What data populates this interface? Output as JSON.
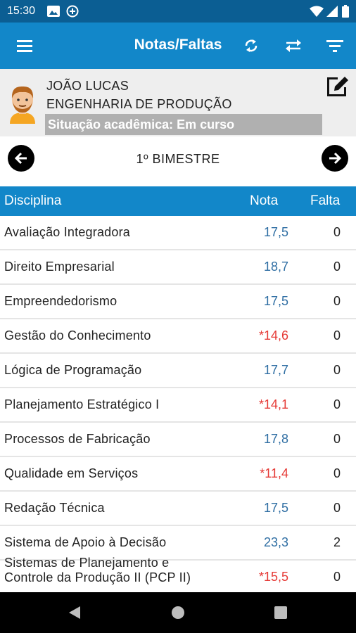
{
  "status_bar": {
    "time": "15:30"
  },
  "app_bar": {
    "title": "Notas/Faltas"
  },
  "profile": {
    "name": "JOÃO LUCAS",
    "course": "ENGENHARIA DE PRODUÇÃO",
    "status": "Situação acadêmica: Em curso"
  },
  "period": {
    "title": "1º BIMESTRE"
  },
  "table": {
    "headers": {
      "discipline": "Disciplina",
      "grade": "Nota",
      "absence": "Falta"
    },
    "rows": [
      {
        "discipline": "Avaliação Integradora",
        "grade": "17,5",
        "absence": "0",
        "low": false
      },
      {
        "discipline": "Direito Empresarial",
        "grade": "18,7",
        "absence": "0",
        "low": false
      },
      {
        "discipline": "Empreendedorismo",
        "grade": "17,5",
        "absence": "0",
        "low": false
      },
      {
        "discipline": "Gestão do Conhecimento",
        "grade": "*14,6",
        "absence": "0",
        "low": true
      },
      {
        "discipline": "Lógica de Programação",
        "grade": "17,7",
        "absence": "0",
        "low": false
      },
      {
        "discipline": "Planejamento Estratégico I",
        "grade": "*14,1",
        "absence": "0",
        "low": true
      },
      {
        "discipline": "Processos de Fabricação",
        "grade": "17,8",
        "absence": "0",
        "low": false
      },
      {
        "discipline": "Qualidade em Serviços",
        "grade": "*11,4",
        "absence": "0",
        "low": true
      },
      {
        "discipline": "Redação Técnica",
        "grade": "17,5",
        "absence": "0",
        "low": false
      },
      {
        "discipline": "Sistema de Apoio à Decisão",
        "grade": "23,3",
        "absence": "2",
        "low": false
      },
      {
        "discipline": "Sistemas de Planejamento e Controle da Produção II (PCP II)",
        "grade": "*15,5",
        "absence": "0",
        "low": true
      }
    ]
  },
  "colors": {
    "primary": "#1287c9",
    "status_bar": "#0b5e93",
    "grade_ok": "#2f6ea3",
    "grade_low": "#e53935"
  },
  "icons": [
    "menu-icon",
    "sync-icon",
    "swap-icon",
    "filter-icon",
    "edit-icon",
    "arrow-left-icon",
    "arrow-right-icon",
    "avatar"
  ]
}
